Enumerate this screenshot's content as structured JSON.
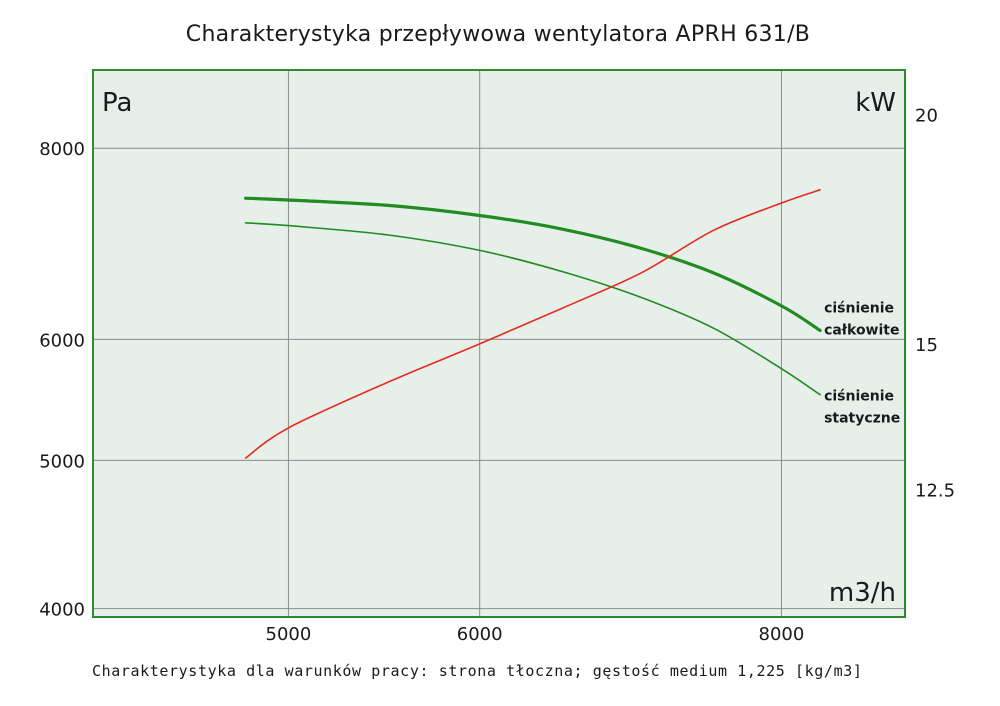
{
  "chart_data": {
    "type": "line",
    "title": "Charakterystyka przepływowa wentylatora APRH 631/B",
    "footnote": "Charakterystyka dla warunków pracy: strona tłoczna; gęstość medium 1,225 [kg/m3]",
    "x_unit": "m3/h",
    "y_unit": "Pa",
    "y2_unit": "kW",
    "x_scale": "log",
    "y_scale": "log",
    "xlim": [
      4150,
      9000
    ],
    "ylim": [
      3950,
      9000
    ],
    "y2lim": [
      10.65,
      21.15
    ],
    "x_ticks": [
      "5000",
      "6000",
      "8000"
    ],
    "y_ticks": [
      "8000",
      "6000",
      "5000",
      "4000"
    ],
    "y2_ticks": [
      "20",
      "15",
      "12.5"
    ],
    "grid": true,
    "colors": {
      "plot_bg": "#e6efe9",
      "frame": "#2e8b2e",
      "pressure": "#228b22",
      "power": "#e62b1e"
    },
    "series": [
      {
        "name": "ciśnienie całkowite",
        "axis": "left",
        "x": [
          4800,
          5000,
          5500,
          6000,
          6500,
          7000,
          7500,
          8000,
          8300
        ],
        "values": [
          7420,
          7400,
          7340,
          7230,
          7080,
          6880,
          6630,
          6310,
          6080
        ]
      },
      {
        "name": "ciśnienie statyczne",
        "axis": "left",
        "x": [
          4800,
          5000,
          5500,
          6000,
          6500,
          7000,
          7500,
          8000,
          8300
        ],
        "values": [
          7150,
          7120,
          7020,
          6860,
          6640,
          6390,
          6100,
          5740,
          5520
        ]
      },
      {
        "name": "",
        "axis": "right",
        "x": [
          4800,
          5000,
          5500,
          6000,
          6500,
          7000,
          7500,
          8000,
          8300
        ],
        "values": [
          13.0,
          13.5,
          14.3,
          15.0,
          15.7,
          16.4,
          17.3,
          17.9,
          18.2
        ]
      }
    ],
    "annotations": [
      {
        "lines": [
          "ciśnienie",
          "całkowite"
        ],
        "series": 0
      },
      {
        "lines": [
          "ciśnienie",
          "statyczne"
        ],
        "series": 1
      }
    ]
  }
}
